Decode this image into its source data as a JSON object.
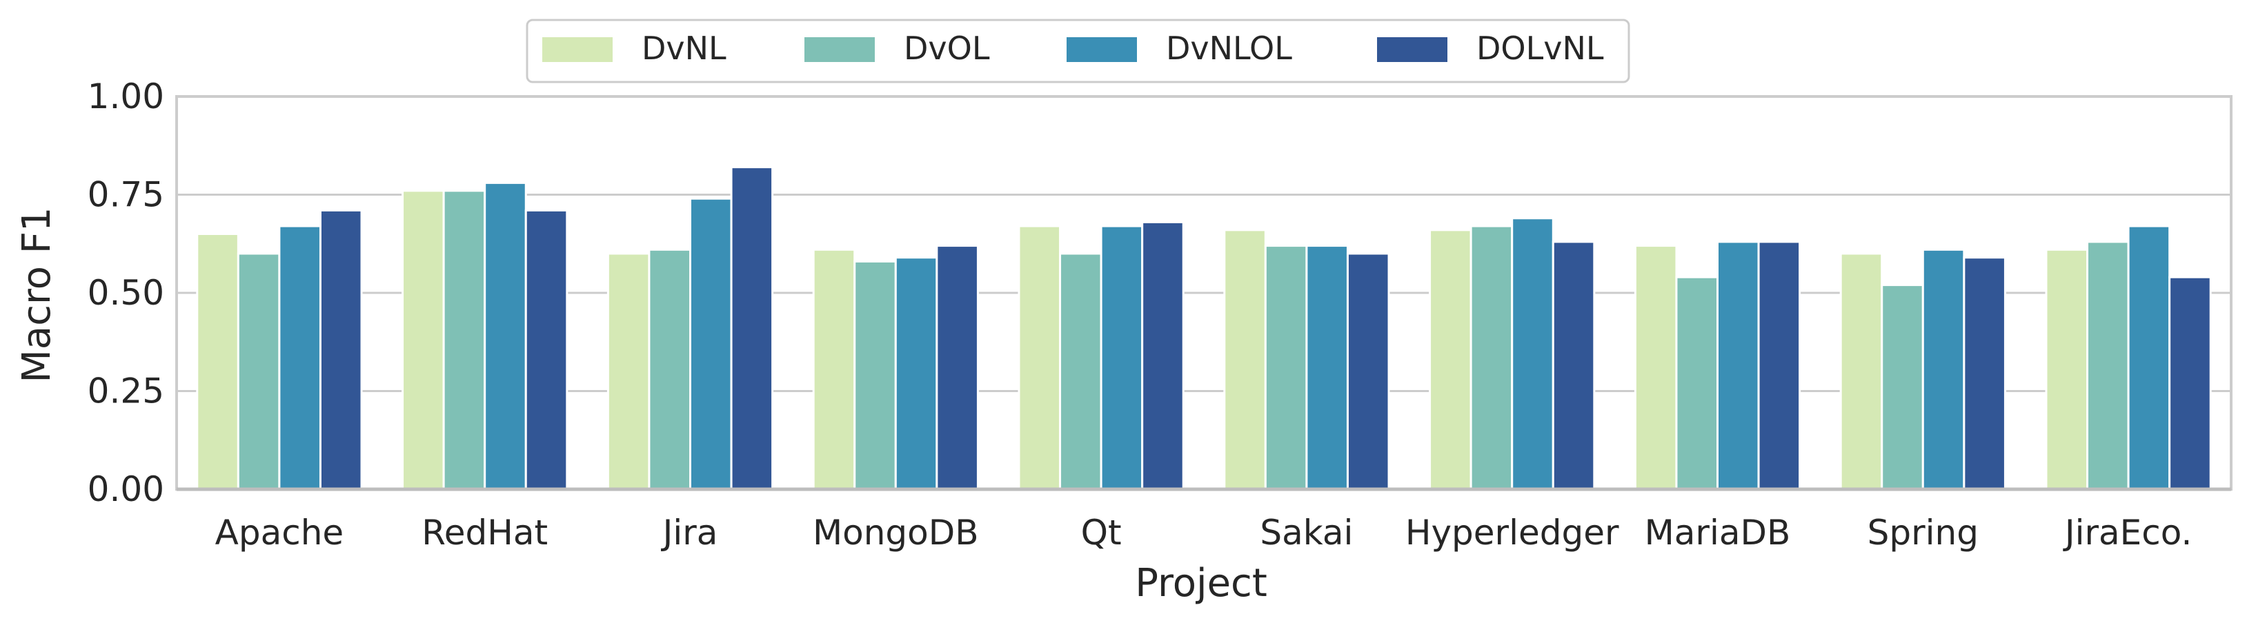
{
  "chart_data": {
    "type": "bar",
    "title": "",
    "xlabel": "Project",
    "ylabel": "Macro F1",
    "ylim": [
      0,
      1
    ],
    "yticks": [
      "0.00",
      "0.25",
      "0.50",
      "0.75",
      "1.00"
    ],
    "grid": "horizontal",
    "legend_position": "top-center",
    "categories": [
      "Apache",
      "RedHat",
      "Jira",
      "MongoDB",
      "Qt",
      "Sakai",
      "Hyperledger",
      "MariaDB",
      "Spring",
      "JiraEco."
    ],
    "series": [
      {
        "name": "DvNL",
        "color": "#d5e9b5",
        "values": [
          0.65,
          0.76,
          0.6,
          0.61,
          0.67,
          0.66,
          0.66,
          0.62,
          0.6,
          0.61
        ]
      },
      {
        "name": "DvOL",
        "color": "#7fc0b5",
        "values": [
          0.6,
          0.76,
          0.61,
          0.58,
          0.6,
          0.62,
          0.67,
          0.54,
          0.52,
          0.63
        ]
      },
      {
        "name": "DvNLOL",
        "color": "#3a8fb5",
        "values": [
          0.67,
          0.78,
          0.74,
          0.59,
          0.67,
          0.62,
          0.69,
          0.63,
          0.61,
          0.67
        ]
      },
      {
        "name": "DOLvNL",
        "color": "#325695",
        "values": [
          0.71,
          0.71,
          0.82,
          0.62,
          0.68,
          0.6,
          0.63,
          0.63,
          0.59,
          0.54
        ]
      }
    ]
  }
}
